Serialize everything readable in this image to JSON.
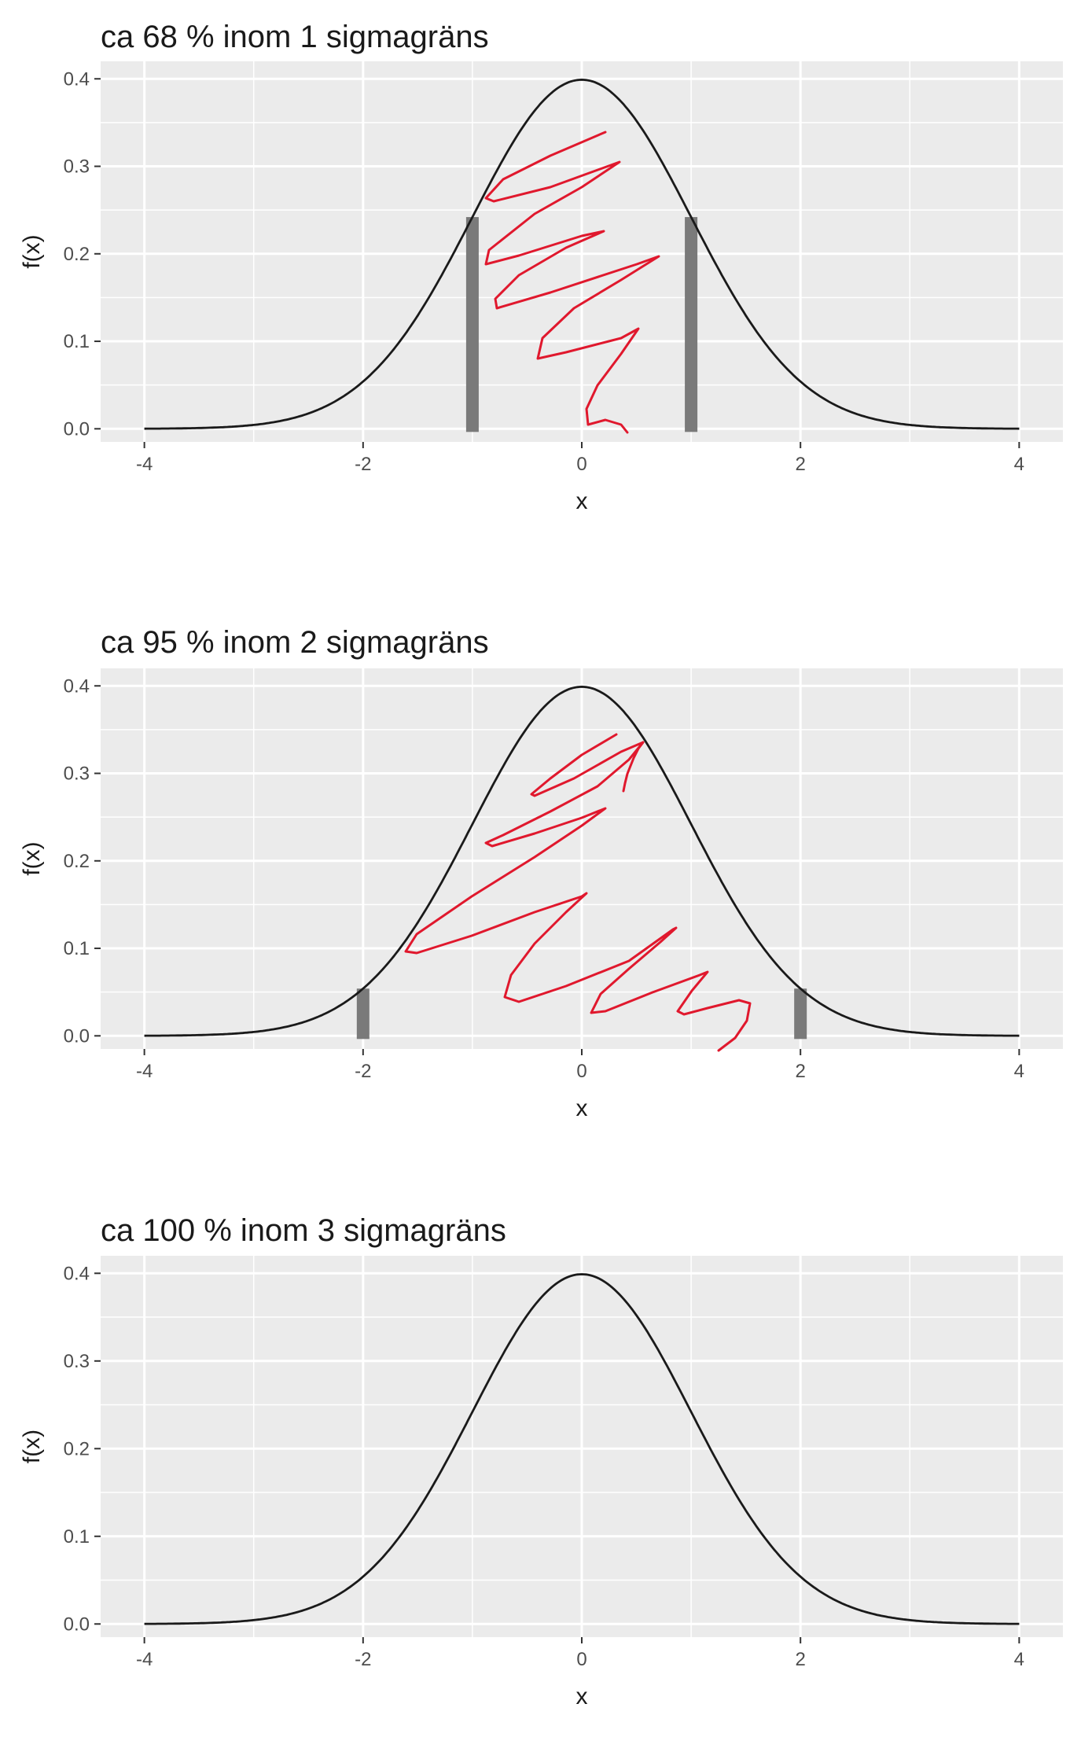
{
  "chart_data": [
    {
      "type": "line",
      "title": "ca 68 % inom 1 sigmagräns",
      "xlabel": "x",
      "ylabel": "f(x)",
      "xlim": [
        -4.4,
        4.4
      ],
      "ylim": [
        -0.015,
        0.42
      ],
      "x_ticks": [
        -4,
        -2,
        0,
        2,
        4
      ],
      "x_tick_labels": [
        "-4",
        "-2",
        "0",
        "2",
        "4"
      ],
      "y_ticks": [
        0.0,
        0.1,
        0.2,
        0.3,
        0.4
      ],
      "y_tick_labels": [
        "0.0",
        "0.1",
        "0.2",
        "0.3",
        "0.4"
      ],
      "grid": true,
      "background": "#ebebeb",
      "curve": {
        "function": "standard normal density",
        "x_range": [
          -4,
          4
        ],
        "color": "#1a1a1a"
      },
      "marker_bars": {
        "x": [
          -1,
          1
        ],
        "heights": [
          0.242,
          0.242
        ],
        "color": "#7a7a7a"
      },
      "annotation": {
        "type": "handwritten red scribble",
        "color": "#e0182d"
      }
    },
    {
      "type": "line",
      "title": "ca 95 % inom 2 sigmagräns",
      "xlabel": "x",
      "ylabel": "f(x)",
      "xlim": [
        -4.4,
        4.4
      ],
      "ylim": [
        -0.015,
        0.42
      ],
      "x_ticks": [
        -4,
        -2,
        0,
        2,
        4
      ],
      "x_tick_labels": [
        "-4",
        "-2",
        "0",
        "2",
        "4"
      ],
      "y_ticks": [
        0.0,
        0.1,
        0.2,
        0.3,
        0.4
      ],
      "y_tick_labels": [
        "0.0",
        "0.1",
        "0.2",
        "0.3",
        "0.4"
      ],
      "grid": true,
      "background": "#ebebeb",
      "curve": {
        "function": "standard normal density",
        "x_range": [
          -4,
          4
        ],
        "color": "#1a1a1a"
      },
      "marker_bars": {
        "x": [
          -2,
          2
        ],
        "heights": [
          0.054,
          0.054
        ],
        "color": "#7a7a7a"
      },
      "annotation": {
        "type": "handwritten red scribble",
        "color": "#e0182d"
      }
    },
    {
      "type": "line",
      "title": "ca 100 % inom 3 sigmagräns",
      "xlabel": "x",
      "ylabel": "f(x)",
      "xlim": [
        -4.4,
        4.4
      ],
      "ylim": [
        -0.015,
        0.42
      ],
      "x_ticks": [
        -4,
        -2,
        0,
        2,
        4
      ],
      "x_tick_labels": [
        "-4",
        "-2",
        "0",
        "2",
        "4"
      ],
      "y_ticks": [
        0.0,
        0.1,
        0.2,
        0.3,
        0.4
      ],
      "y_tick_labels": [
        "0.0",
        "0.1",
        "0.2",
        "0.3",
        "0.4"
      ],
      "grid": true,
      "background": "#ebebeb",
      "curve": {
        "function": "standard normal density",
        "x_range": [
          -4,
          4
        ],
        "color": "#1a1a1a"
      },
      "marker_bars": {
        "x": [],
        "heights": [],
        "color": "#7a7a7a"
      }
    }
  ]
}
